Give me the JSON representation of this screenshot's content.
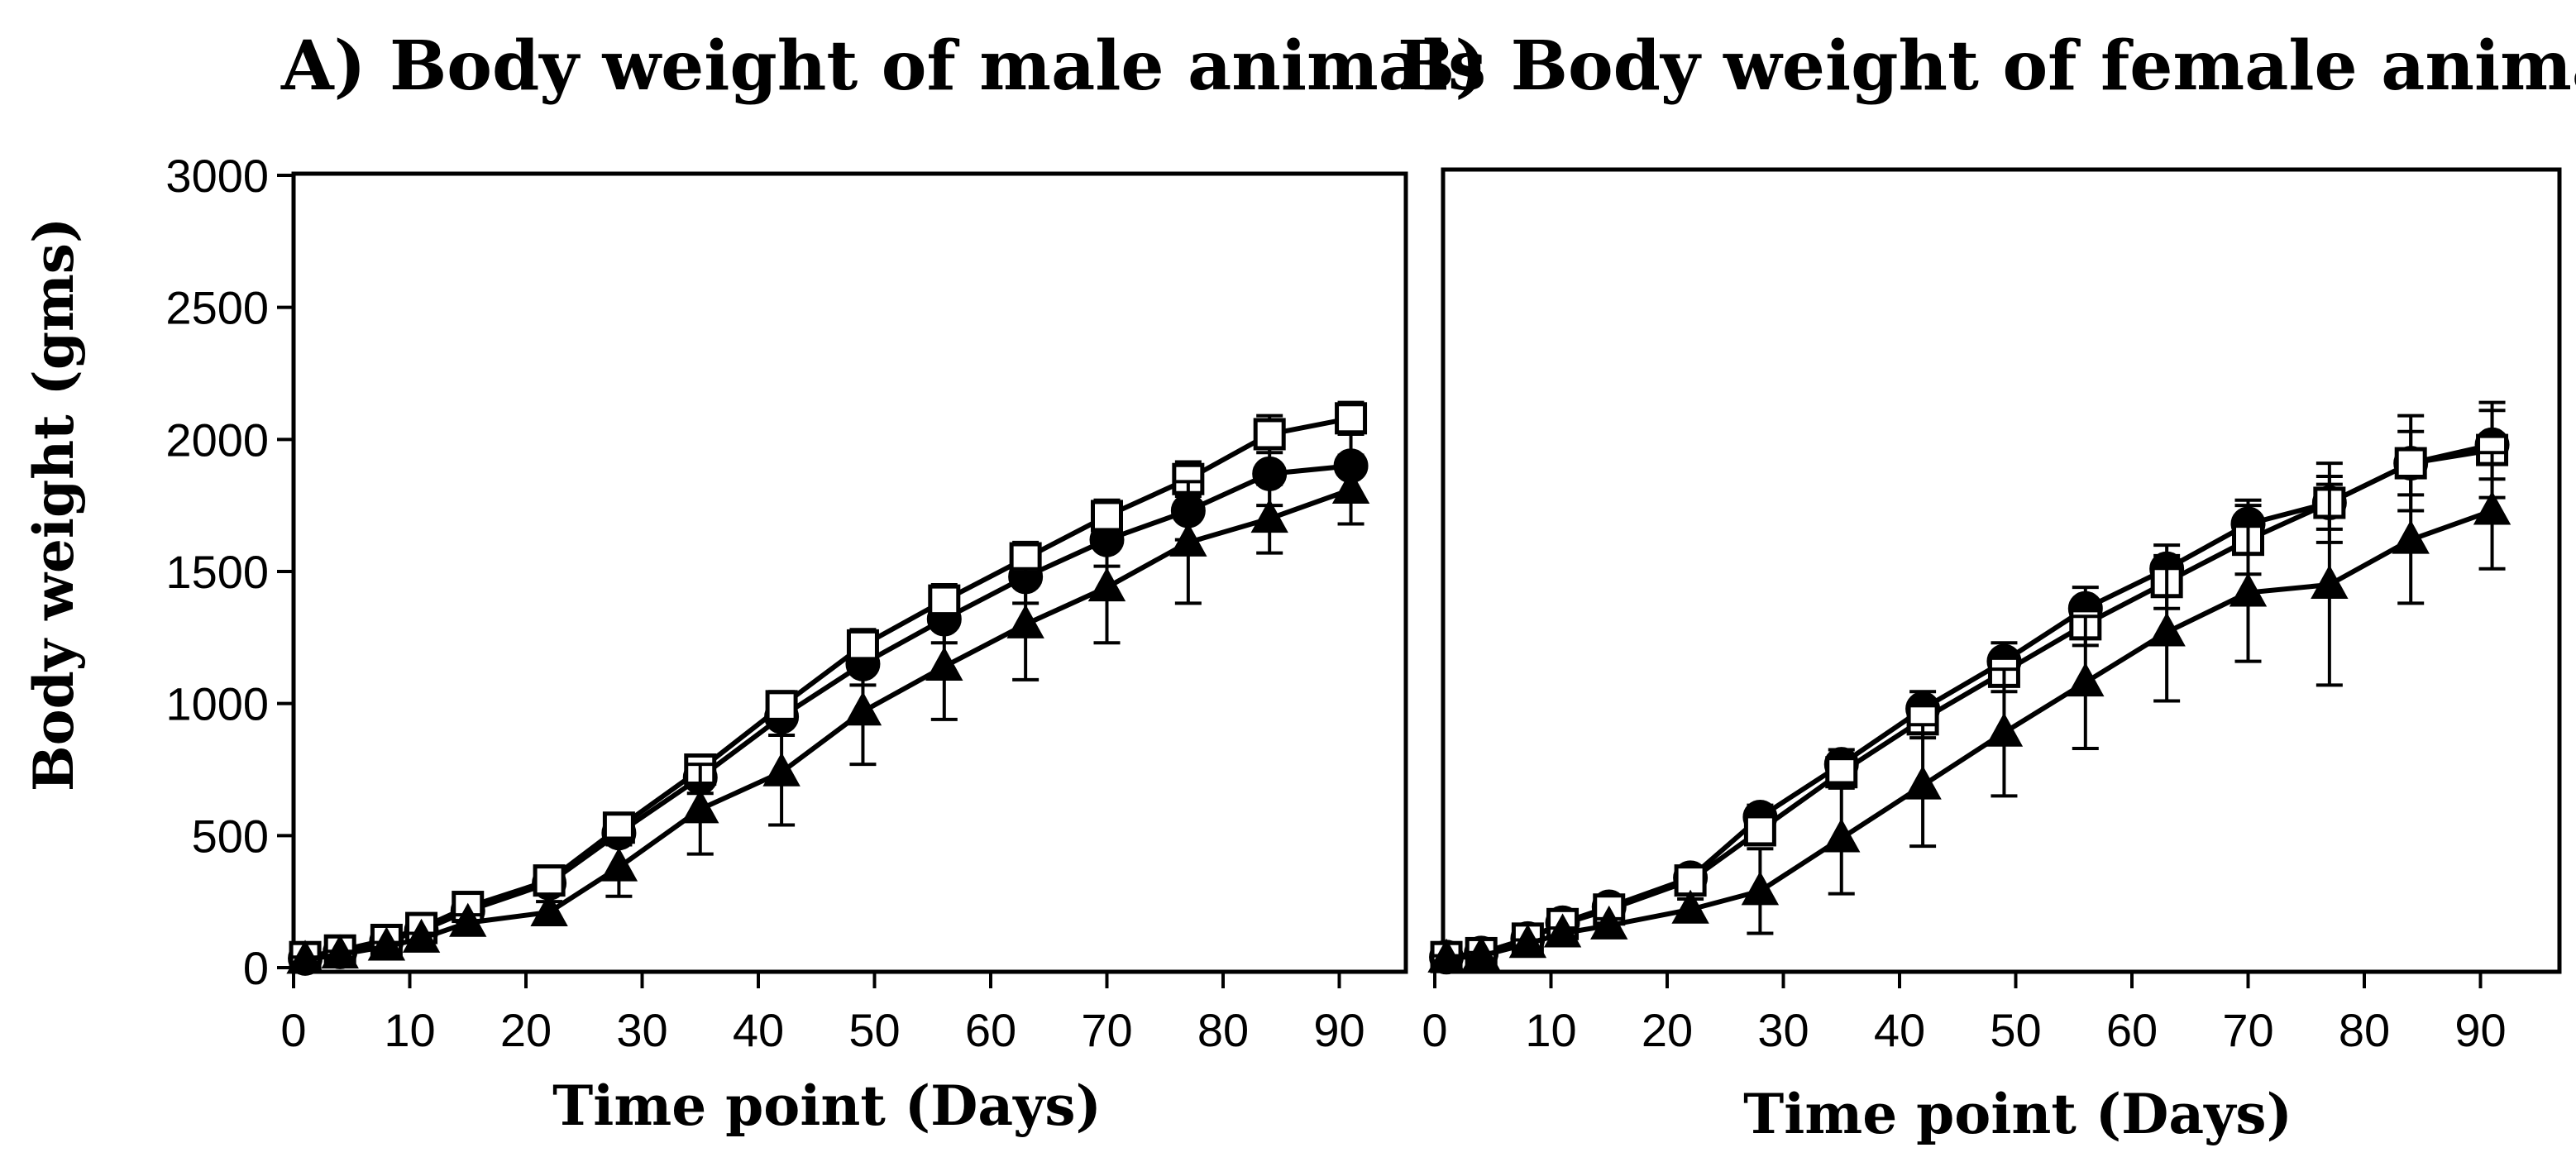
{
  "chart_data": [
    {
      "type": "line",
      "panel": "A",
      "title": "A) Body weight of male animals",
      "xlabel": "Time point (Days)",
      "ylabel": "Body weight (gms)",
      "xlim": [
        0,
        95
      ],
      "ylim": [
        0,
        3000
      ],
      "xticks": [
        0,
        10,
        20,
        30,
        40,
        50,
        60,
        70,
        80,
        90
      ],
      "yticks": [
        0,
        500,
        1000,
        1500,
        2000,
        2500,
        3000
      ],
      "x": [
        1,
        4,
        8,
        11,
        15,
        22,
        28,
        35,
        42,
        49,
        56,
        63,
        70,
        77,
        84,
        91
      ],
      "series": [
        {
          "name": "circle",
          "marker": "circle",
          "values": [
            35,
            60,
            100,
            140,
            215,
            320,
            510,
            720,
            950,
            1150,
            1320,
            1480,
            1620,
            1730,
            1870,
            1900
          ],
          "errors": [
            10,
            12,
            15,
            20,
            25,
            35,
            45,
            60,
            70,
            80,
            90,
            100,
            100,
            110,
            120,
            130
          ]
        },
        {
          "name": "open square",
          "marker": "square",
          "values": [
            40,
            65,
            105,
            150,
            230,
            330,
            530,
            750,
            990,
            1220,
            1390,
            1550,
            1710,
            1850,
            2020,
            2080
          ],
          "errors": [
            10,
            12,
            15,
            20,
            25,
            35,
            45,
            50,
            55,
            60,
            60,
            60,
            60,
            65,
            70,
            60
          ]
        },
        {
          "name": "triangle",
          "marker": "triangle",
          "values": [
            30,
            50,
            80,
            110,
            170,
            210,
            380,
            600,
            740,
            970,
            1140,
            1300,
            1440,
            1610,
            1700,
            1810
          ],
          "errors": [
            10,
            12,
            15,
            20,
            30,
            40,
            110,
            170,
            200,
            200,
            200,
            210,
            210,
            230,
            130,
            130
          ]
        }
      ]
    },
    {
      "type": "line",
      "panel": "B",
      "title": "B) Body weight of female animals",
      "xlabel": "Time point (Days)",
      "ylabel": "",
      "xlim": [
        0,
        95
      ],
      "ylim": [
        0,
        3000
      ],
      "xticks": [
        0,
        10,
        20,
        30,
        40,
        50,
        60,
        70,
        80,
        90
      ],
      "x": [
        1,
        4,
        8,
        11,
        15,
        22,
        28,
        35,
        42,
        49,
        56,
        63,
        70,
        77,
        84,
        91
      ],
      "series": [
        {
          "name": "circle",
          "marker": "circle",
          "values": [
            40,
            55,
            110,
            170,
            230,
            340,
            570,
            770,
            980,
            1160,
            1360,
            1510,
            1680,
            1760,
            1910,
            1980
          ],
          "errors": [
            10,
            12,
            15,
            20,
            25,
            35,
            45,
            55,
            65,
            70,
            80,
            90,
            90,
            100,
            120,
            130
          ]
        },
        {
          "name": "open square",
          "marker": "square",
          "values": [
            40,
            55,
            110,
            165,
            220,
            330,
            520,
            740,
            940,
            1120,
            1300,
            1460,
            1620,
            1760,
            1910,
            1960
          ],
          "errors": [
            10,
            12,
            15,
            20,
            25,
            35,
            45,
            60,
            70,
            75,
            80,
            100,
            130,
            150,
            180,
            180
          ]
        },
        {
          "name": "triangle",
          "marker": "triangle",
          "values": [
            35,
            45,
            90,
            130,
            160,
            220,
            290,
            490,
            690,
            890,
            1080,
            1270,
            1420,
            1450,
            1620,
            1730
          ],
          "errors": [
            10,
            12,
            15,
            20,
            25,
            40,
            160,
            210,
            230,
            240,
            250,
            260,
            260,
            380,
            240,
            220
          ]
        }
      ]
    }
  ]
}
